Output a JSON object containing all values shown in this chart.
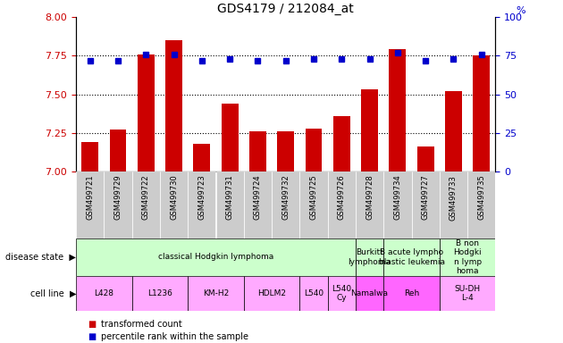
{
  "title": "GDS4179 / 212084_at",
  "samples": [
    "GSM499721",
    "GSM499729",
    "GSM499722",
    "GSM499730",
    "GSM499723",
    "GSM499731",
    "GSM499724",
    "GSM499732",
    "GSM499725",
    "GSM499726",
    "GSM499728",
    "GSM499734",
    "GSM499727",
    "GSM499733",
    "GSM499735"
  ],
  "transformed_count": [
    7.19,
    7.27,
    7.76,
    7.85,
    7.18,
    7.44,
    7.26,
    7.26,
    7.28,
    7.36,
    7.53,
    7.79,
    7.16,
    7.52,
    7.75
  ],
  "percentile_rank": [
    72,
    72,
    76,
    76,
    72,
    73,
    72,
    72,
    73,
    73,
    73,
    77,
    72,
    73,
    76
  ],
  "ylim_left": [
    7.0,
    8.0
  ],
  "ylim_right": [
    0,
    100
  ],
  "yticks_left": [
    7.0,
    7.25,
    7.5,
    7.75,
    8.0
  ],
  "yticks_right": [
    0,
    25,
    50,
    75,
    100
  ],
  "bar_color": "#cc0000",
  "dot_color": "#0000cc",
  "disease_state_groups": [
    {
      "label": "classical Hodgkin lymphoma",
      "start": 0,
      "end": 10,
      "color": "#ccffcc"
    },
    {
      "label": "Burkitt\nlymphoma",
      "start": 10,
      "end": 11,
      "color": "#ccffcc"
    },
    {
      "label": "B acute lympho\nblastic leukemia",
      "start": 11,
      "end": 13,
      "color": "#ccffcc"
    },
    {
      "label": "B non\nHodgki\nn lymp\nhoma",
      "start": 13,
      "end": 15,
      "color": "#ccffcc"
    }
  ],
  "cell_line_groups": [
    {
      "label": "L428",
      "start": 0,
      "end": 2,
      "color": "#ffaaff"
    },
    {
      "label": "L1236",
      "start": 2,
      "end": 4,
      "color": "#ffaaff"
    },
    {
      "label": "KM-H2",
      "start": 4,
      "end": 6,
      "color": "#ffaaff"
    },
    {
      "label": "HDLM2",
      "start": 6,
      "end": 8,
      "color": "#ffaaff"
    },
    {
      "label": "L540",
      "start": 8,
      "end": 9,
      "color": "#ffaaff"
    },
    {
      "label": "L540\nCy",
      "start": 9,
      "end": 10,
      "color": "#ffaaff"
    },
    {
      "label": "Namalwa",
      "start": 10,
      "end": 11,
      "color": "#ff66ff"
    },
    {
      "label": "Reh",
      "start": 11,
      "end": 13,
      "color": "#ff66ff"
    },
    {
      "label": "SU-DH\nL-4",
      "start": 13,
      "end": 15,
      "color": "#ffaaff"
    }
  ],
  "sample_bg_color": "#cccccc",
  "background_color": "#ffffff",
  "left_label_color": "#cc0000",
  "right_label_color": "#0000cc",
  "legend_items": [
    {
      "label": "transformed count",
      "color": "#cc0000"
    },
    {
      "label": "percentile rank within the sample",
      "color": "#0000cc"
    }
  ]
}
